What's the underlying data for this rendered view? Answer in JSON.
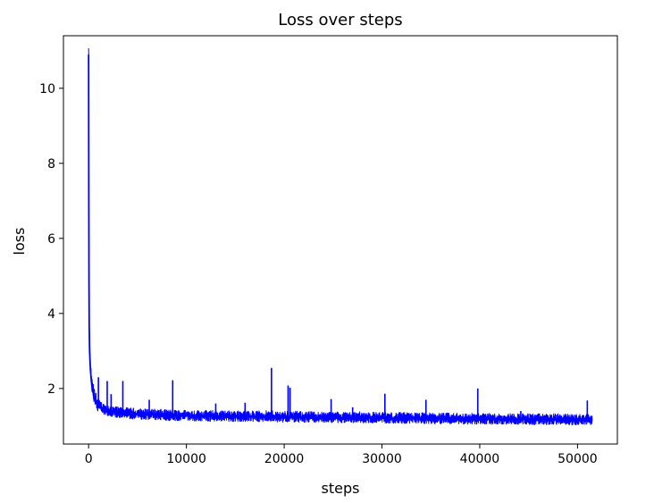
{
  "chart_data": {
    "type": "line",
    "title": "Loss over steps",
    "xlabel": "steps",
    "ylabel": "loss",
    "xlim": [
      -2575,
      54075
    ],
    "ylim": [
      0.52,
      11.4
    ],
    "xticks": [
      0,
      10000,
      20000,
      30000,
      40000,
      50000
    ],
    "yticks": [
      2,
      4,
      6,
      8,
      10
    ],
    "grid": false,
    "legend": "none",
    "series": [
      {
        "color": "#0000ff",
        "x": [
          0,
          20,
          40,
          60,
          100,
          150,
          200,
          300,
          400,
          600,
          800,
          1000,
          1500,
          2000,
          3000,
          4000,
          5000,
          6000,
          8000,
          10000,
          12000,
          15000,
          18000,
          20000,
          22000,
          25000,
          28000,
          30000,
          33000,
          36000,
          40000,
          43000,
          46000,
          48000,
          50000,
          51500
        ],
        "y": [
          10.9,
          7.2,
          4.8,
          3.7,
          3.0,
          2.7,
          2.45,
          2.15,
          1.95,
          1.75,
          1.62,
          1.55,
          1.45,
          1.4,
          1.35,
          1.33,
          1.31,
          1.3,
          1.28,
          1.27,
          1.26,
          1.25,
          1.25,
          1.24,
          1.23,
          1.22,
          1.22,
          1.21,
          1.2,
          1.19,
          1.18,
          1.18,
          1.17,
          1.17,
          1.16,
          1.16
        ],
        "spikes": [
          [
            1900,
            2.2
          ],
          [
            3500,
            2.2
          ],
          [
            8600,
            2.22
          ],
          [
            18700,
            2.55
          ],
          [
            20400,
            2.08
          ],
          [
            20600,
            2.02
          ],
          [
            30300,
            1.86
          ],
          [
            39800,
            2.0
          ],
          [
            51000,
            1.68
          ],
          [
            1000,
            2.3
          ],
          [
            2300,
            1.85
          ],
          [
            6200,
            1.7
          ],
          [
            24800,
            1.72
          ],
          [
            34500,
            1.7
          ],
          [
            13000,
            1.6
          ],
          [
            16000,
            1.62
          ],
          [
            27000,
            1.5
          ],
          [
            44200,
            1.4
          ]
        ],
        "band_low": 1.0,
        "noise": 0.12
      }
    ]
  }
}
